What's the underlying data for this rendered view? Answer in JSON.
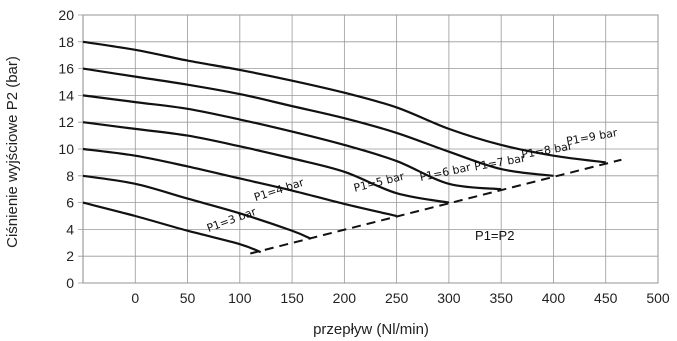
{
  "chart_data": {
    "type": "line",
    "title": "",
    "xlabel": "przepływ (Nl/min)",
    "ylabel": "Ciśnienie wyjściowe P2 (bar)",
    "xlim": [
      -50,
      500
    ],
    "ylim": [
      0,
      20
    ],
    "x_ticks": [
      "0",
      "50",
      "100",
      "150",
      "200",
      "250",
      "300",
      "350",
      "400",
      "450",
      "500"
    ],
    "y_ticks": [
      "0",
      "2",
      "4",
      "6",
      "8",
      "10",
      "12",
      "14",
      "16",
      "18",
      "20"
    ],
    "grid": true,
    "series": [
      {
        "name": "P1=3 bar",
        "x": [
          -50,
          0,
          50,
          100,
          120
        ],
        "y": [
          6,
          5,
          3.9,
          2.9,
          2.3
        ]
      },
      {
        "name": "P1=4 bar",
        "x": [
          -50,
          0,
          50,
          100,
          150,
          168
        ],
        "y": [
          8,
          7.4,
          6.3,
          5.2,
          3.9,
          3.3
        ]
      },
      {
        "name": "P1=5 bar",
        "x": [
          -50,
          0,
          50,
          100,
          150,
          200,
          250
        ],
        "y": [
          10,
          9.5,
          8.7,
          7.8,
          6.9,
          5.9,
          5.0
        ]
      },
      {
        "name": "P1=6 bar",
        "x": [
          -50,
          0,
          50,
          100,
          150,
          200,
          250,
          300
        ],
        "y": [
          12,
          11.5,
          11.0,
          10.2,
          9.3,
          8.3,
          6.7,
          6.0
        ]
      },
      {
        "name": "P1=7 bar",
        "x": [
          -50,
          0,
          50,
          100,
          150,
          200,
          250,
          300,
          350
        ],
        "y": [
          14,
          13.5,
          13.0,
          12.2,
          11.3,
          10.3,
          9.1,
          7.4,
          7.0
        ]
      },
      {
        "name": "P1=8 bar",
        "x": [
          -50,
          0,
          50,
          100,
          150,
          200,
          250,
          300,
          350,
          400
        ],
        "y": [
          16,
          15.4,
          14.8,
          14.1,
          13.2,
          12.3,
          11.2,
          9.8,
          8.5,
          8.0
        ]
      },
      {
        "name": "P1=9 bar",
        "x": [
          -50,
          0,
          50,
          100,
          150,
          200,
          250,
          300,
          350,
          400,
          450
        ],
        "y": [
          18,
          17.4,
          16.6,
          15.9,
          15.1,
          14.2,
          13.1,
          11.5,
          10.3,
          9.5,
          9.0
        ]
      }
    ],
    "limit_line": {
      "x": [
        110,
        465
      ],
      "y": [
        2.2,
        9.2
      ],
      "style": "dashed"
    },
    "curve_labels": [
      {
        "text": "P1=3 bar",
        "x": 70,
        "y": 3.8,
        "angle": -20
      },
      {
        "text": "P1=4 bar",
        "x": 115,
        "y": 6.1,
        "angle": -18
      },
      {
        "text": "P1=5 bar",
        "x": 210,
        "y": 6.8,
        "angle": -14
      },
      {
        "text": "P1=6 bar",
        "x": 273,
        "y": 7.6,
        "angle": -12
      },
      {
        "text": "P1=7 bar",
        "x": 325,
        "y": 8.4,
        "angle": -10
      },
      {
        "text": "P1=8 bar",
        "x": 370,
        "y": 9.3,
        "angle": -10
      },
      {
        "text": "P1=9 bar",
        "x": 413,
        "y": 10.3,
        "angle": -10
      }
    ],
    "annotation": {
      "text": "P1=P2",
      "x": 325,
      "y": 3.2
    }
  }
}
